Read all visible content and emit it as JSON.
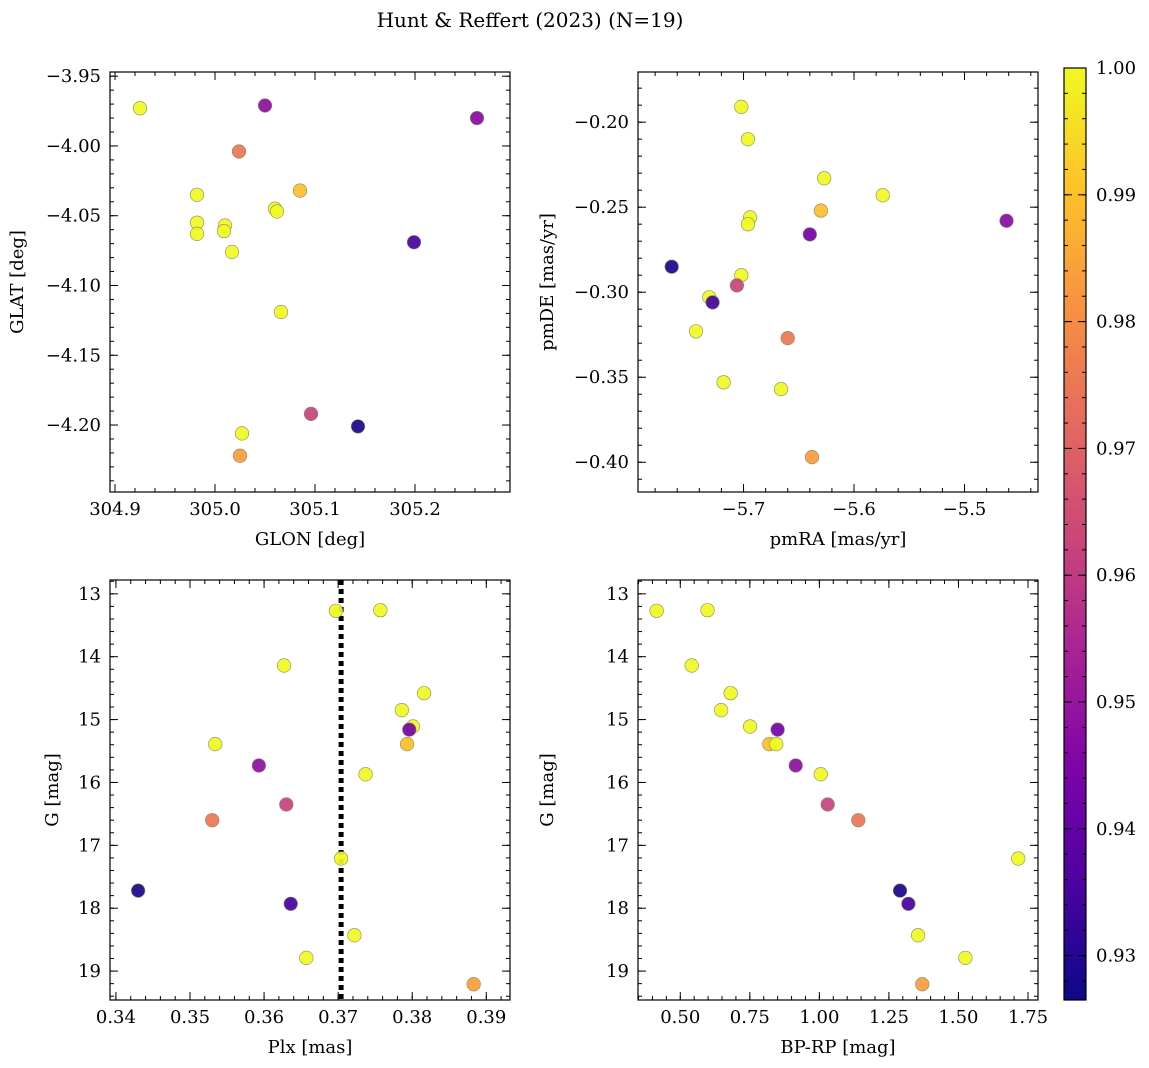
{
  "figure": {
    "title": "Hunt & Reffert (2023) (N=19)"
  },
  "colorbar": {
    "vmin": 0.9265,
    "vmax": 1.0,
    "ticks": [
      0.93,
      0.94,
      0.95,
      0.96,
      0.97,
      0.98,
      0.99,
      1.0
    ],
    "tick_labels": [
      "0.93",
      "0.94",
      "0.95",
      "0.96",
      "0.97",
      "0.98",
      "0.99",
      "1.00"
    ],
    "colormap": "plasma"
  },
  "chart_data": [
    {
      "type": "scatter",
      "name": "glon-glat",
      "xlabel": "GLON [deg]",
      "ylabel": "GLAT [deg]",
      "xlim": [
        304.895,
        305.295
      ],
      "ylim": [
        -4.248,
        -3.947
      ],
      "y_inverted": false,
      "xticks": [
        304.9,
        305.0,
        305.1,
        305.2
      ],
      "xtick_labels": [
        "304.9",
        "305.0",
        "305.1",
        "305.2"
      ],
      "yticks": [
        -3.95,
        -4.0,
        -4.05,
        -4.1,
        -4.15,
        -4.2
      ],
      "ytick_labels": [
        "−3.95",
        "−4.00",
        "−4.05",
        "−4.10",
        "−4.15",
        "−4.20"
      ],
      "x_minor": 0.02,
      "y_minor": 0.01,
      "points": [
        {
          "x": 304.925,
          "y": -3.973,
          "c": 1.0
        },
        {
          "x": 305.05,
          "y": -3.971,
          "c": 0.948
        },
        {
          "x": 305.262,
          "y": -3.98,
          "c": 0.947
        },
        {
          "x": 305.024,
          "y": -4.004,
          "c": 0.975
        },
        {
          "x": 304.982,
          "y": -4.035,
          "c": 1.0
        },
        {
          "x": 305.085,
          "y": -4.032,
          "c": 0.99
        },
        {
          "x": 305.06,
          "y": -4.045,
          "c": 1.0
        },
        {
          "x": 305.062,
          "y": -4.047,
          "c": 1.0
        },
        {
          "x": 304.982,
          "y": -4.055,
          "c": 1.0
        },
        {
          "x": 305.01,
          "y": -4.057,
          "c": 1.0
        },
        {
          "x": 305.009,
          "y": -4.061,
          "c": 1.0
        },
        {
          "x": 304.982,
          "y": -4.063,
          "c": 1.0
        },
        {
          "x": 305.199,
          "y": -4.069,
          "c": 0.935
        },
        {
          "x": 305.017,
          "y": -4.076,
          "c": 1.0
        },
        {
          "x": 305.066,
          "y": -4.119,
          "c": 1.0
        },
        {
          "x": 305.096,
          "y": -4.192,
          "c": 0.962
        },
        {
          "x": 305.143,
          "y": -4.201,
          "c": 0.928
        },
        {
          "x": 305.027,
          "y": -4.206,
          "c": 1.0
        },
        {
          "x": 305.025,
          "y": -4.222,
          "c": 0.983
        }
      ]
    },
    {
      "type": "scatter",
      "name": "pmra-pmde",
      "xlabel": "pmRA [mas/yr]",
      "ylabel": "pmDE [mas/yr]",
      "xlim": [
        -5.7955,
        -5.4335
      ],
      "ylim": [
        -0.4175,
        -0.1705
      ],
      "y_inverted": false,
      "xticks": [
        -5.7,
        -5.6,
        -5.5
      ],
      "xtick_labels": [
        "−5.7",
        "−5.6",
        "−5.5"
      ],
      "yticks": [
        -0.2,
        -0.25,
        -0.3,
        -0.35,
        -0.4
      ],
      "ytick_labels": [
        "−0.20",
        "−0.25",
        "−0.30",
        "−0.35",
        "−0.40"
      ],
      "x_minor": 0.02,
      "y_minor": 0.01,
      "points": [
        {
          "x": -5.702,
          "y": -0.191,
          "c": 1.0
        },
        {
          "x": -5.696,
          "y": -0.21,
          "c": 1.0
        },
        {
          "x": -5.627,
          "y": -0.233,
          "c": 1.0
        },
        {
          "x": -5.574,
          "y": -0.243,
          "c": 1.0
        },
        {
          "x": -5.63,
          "y": -0.252,
          "c": 0.99
        },
        {
          "x": -5.694,
          "y": -0.256,
          "c": 1.0
        },
        {
          "x": -5.696,
          "y": -0.26,
          "c": 1.0
        },
        {
          "x": -5.462,
          "y": -0.258,
          "c": 0.947
        },
        {
          "x": -5.64,
          "y": -0.266,
          "c": 0.943
        },
        {
          "x": -5.765,
          "y": -0.285,
          "c": 0.928
        },
        {
          "x": -5.702,
          "y": -0.29,
          "c": 1.0
        },
        {
          "x": -5.706,
          "y": -0.296,
          "c": 0.962
        },
        {
          "x": -5.731,
          "y": -0.303,
          "c": 1.0
        },
        {
          "x": -5.728,
          "y": -0.306,
          "c": 0.935
        },
        {
          "x": -5.743,
          "y": -0.323,
          "c": 1.0
        },
        {
          "x": -5.66,
          "y": -0.327,
          "c": 0.975
        },
        {
          "x": -5.718,
          "y": -0.353,
          "c": 1.0
        },
        {
          "x": -5.666,
          "y": -0.357,
          "c": 1.0
        },
        {
          "x": -5.638,
          "y": -0.397,
          "c": 0.983
        }
      ]
    },
    {
      "type": "scatter",
      "name": "plx-g",
      "xlabel": "Plx [mas]",
      "ylabel": "G [mag]",
      "xlim": [
        0.3392,
        0.3932
      ],
      "ylim": [
        12.78,
        19.46
      ],
      "y_inverted": true,
      "xticks": [
        0.34,
        0.35,
        0.36,
        0.37,
        0.38,
        0.39
      ],
      "xtick_labels": [
        "0.34",
        "0.35",
        "0.36",
        "0.37",
        "0.38",
        "0.39"
      ],
      "yticks": [
        13,
        14,
        15,
        16,
        17,
        18,
        19
      ],
      "ytick_labels": [
        "13",
        "14",
        "15",
        "16",
        "17",
        "18",
        "19"
      ],
      "x_minor": 0.002,
      "y_minor": 0.2,
      "vline": {
        "x": 0.3704,
        "style": "dotted"
      },
      "points": [
        {
          "x": 0.3697,
          "y": 13.27,
          "c": 1.0
        },
        {
          "x": 0.3757,
          "y": 13.26,
          "c": 1.0
        },
        {
          "x": 0.3627,
          "y": 14.14,
          "c": 1.0
        },
        {
          "x": 0.3816,
          "y": 14.58,
          "c": 1.0
        },
        {
          "x": 0.3786,
          "y": 14.85,
          "c": 1.0
        },
        {
          "x": 0.3801,
          "y": 15.11,
          "c": 1.0
        },
        {
          "x": 0.3796,
          "y": 15.16,
          "c": 0.943
        },
        {
          "x": 0.3534,
          "y": 15.39,
          "c": 1.0
        },
        {
          "x": 0.3793,
          "y": 15.39,
          "c": 0.99
        },
        {
          "x": 0.3593,
          "y": 15.73,
          "c": 0.948
        },
        {
          "x": 0.3737,
          "y": 15.87,
          "c": 1.0
        },
        {
          "x": 0.363,
          "y": 16.35,
          "c": 0.962
        },
        {
          "x": 0.353,
          "y": 16.6,
          "c": 0.975
        },
        {
          "x": 0.3704,
          "y": 17.21,
          "c": 1.0
        },
        {
          "x": 0.343,
          "y": 17.72,
          "c": 0.928
        },
        {
          "x": 0.3636,
          "y": 17.93,
          "c": 0.935
        },
        {
          "x": 0.3722,
          "y": 18.43,
          "c": 1.0
        },
        {
          "x": 0.3657,
          "y": 18.79,
          "c": 1.0
        },
        {
          "x": 0.3883,
          "y": 19.21,
          "c": 0.983
        }
      ]
    },
    {
      "type": "scatter",
      "name": "bprp-g",
      "xlabel": "BP-RP [mag]",
      "ylabel": "G [mag]",
      "xlim": [
        0.348,
        1.786
      ],
      "ylim": [
        12.78,
        19.46
      ],
      "y_inverted": true,
      "xticks": [
        0.5,
        0.75,
        1.0,
        1.25,
        1.5,
        1.75
      ],
      "xtick_labels": [
        "0.50",
        "0.75",
        "1.00",
        "1.25",
        "1.50",
        "1.75"
      ],
      "yticks": [
        13,
        14,
        15,
        16,
        17,
        18,
        19
      ],
      "ytick_labels": [
        "13",
        "14",
        "15",
        "16",
        "17",
        "18",
        "19"
      ],
      "x_minor": 0.05,
      "y_minor": 0.2,
      "points": [
        {
          "x": 0.415,
          "y": 13.27,
          "c": 1.0
        },
        {
          "x": 0.598,
          "y": 13.26,
          "c": 1.0
        },
        {
          "x": 0.541,
          "y": 14.14,
          "c": 1.0
        },
        {
          "x": 0.681,
          "y": 14.58,
          "c": 1.0
        },
        {
          "x": 0.647,
          "y": 14.85,
          "c": 1.0
        },
        {
          "x": 0.751,
          "y": 15.11,
          "c": 1.0
        },
        {
          "x": 0.85,
          "y": 15.16,
          "c": 0.943
        },
        {
          "x": 0.82,
          "y": 15.39,
          "c": 0.99
        },
        {
          "x": 0.845,
          "y": 15.39,
          "c": 1.0
        },
        {
          "x": 0.915,
          "y": 15.73,
          "c": 0.948
        },
        {
          "x": 1.005,
          "y": 15.87,
          "c": 1.0
        },
        {
          "x": 1.03,
          "y": 16.35,
          "c": 0.962
        },
        {
          "x": 1.14,
          "y": 16.6,
          "c": 0.975
        },
        {
          "x": 1.715,
          "y": 17.21,
          "c": 1.0
        },
        {
          "x": 1.29,
          "y": 17.72,
          "c": 0.928
        },
        {
          "x": 1.32,
          "y": 17.93,
          "c": 0.935
        },
        {
          "x": 1.355,
          "y": 18.43,
          "c": 1.0
        },
        {
          "x": 1.525,
          "y": 18.79,
          "c": 1.0
        },
        {
          "x": 1.37,
          "y": 19.21,
          "c": 0.983
        }
      ]
    }
  ]
}
